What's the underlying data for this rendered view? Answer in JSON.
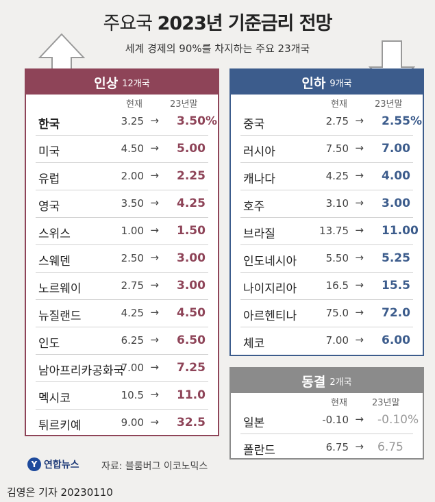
{
  "title_light": "주요국",
  "title_bold": "2023년 기준금리 전망",
  "subtitle": "세계 경제의 90%를 차지하는 주요 23개국",
  "cols": {
    "current": "현재",
    "forecast": "23년말"
  },
  "colors": {
    "hike": "#8e4458",
    "cut": "#3c5c8c",
    "hold": "#8b8b8b"
  },
  "hike": {
    "label": "인상",
    "count": "12개국",
    "rows": [
      {
        "name": "한국",
        "cur": "3.25",
        "nxt": "3.50%"
      },
      {
        "name": "미국",
        "cur": "4.50",
        "nxt": "5.00"
      },
      {
        "name": "유럽",
        "cur": "2.00",
        "nxt": "2.25"
      },
      {
        "name": "영국",
        "cur": "3.50",
        "nxt": "4.25"
      },
      {
        "name": "스위스",
        "cur": "1.00",
        "nxt": "1.50"
      },
      {
        "name": "스웨덴",
        "cur": "2.50",
        "nxt": "3.00"
      },
      {
        "name": "노르웨이",
        "cur": "2.75",
        "nxt": "3.00"
      },
      {
        "name": "뉴질랜드",
        "cur": "4.25",
        "nxt": "4.50"
      },
      {
        "name": "인도",
        "cur": "6.25",
        "nxt": "6.50"
      },
      {
        "name": "남아프리카공화국",
        "cur": "7.00",
        "nxt": "7.25"
      },
      {
        "name": "멕시코",
        "cur": "10.5",
        "nxt": "11.0"
      },
      {
        "name": "튀르키예",
        "cur": "9.00",
        "nxt": "32.5"
      }
    ]
  },
  "cut": {
    "label": "인하",
    "count": "9개국",
    "rows": [
      {
        "name": "중국",
        "cur": "2.75",
        "nxt": "2.55%"
      },
      {
        "name": "러시아",
        "cur": "7.50",
        "nxt": "7.00"
      },
      {
        "name": "캐나다",
        "cur": "4.25",
        "nxt": "4.00"
      },
      {
        "name": "호주",
        "cur": "3.10",
        "nxt": "3.00"
      },
      {
        "name": "브라질",
        "cur": "13.75",
        "nxt": "11.00"
      },
      {
        "name": "인도네시아",
        "cur": "5.50",
        "nxt": "5.25"
      },
      {
        "name": "나이지리아",
        "cur": "16.5",
        "nxt": "15.5"
      },
      {
        "name": "아르헨티나",
        "cur": "75.0",
        "nxt": "72.0"
      },
      {
        "name": "체코",
        "cur": "7.00",
        "nxt": "6.00"
      }
    ]
  },
  "hold": {
    "label": "동결",
    "count": "2개국",
    "rows": [
      {
        "name": "일본",
        "cur": "-0.10",
        "nxt": "-0.10%"
      },
      {
        "name": "폴란드",
        "cur": "6.75",
        "nxt": "6.75"
      }
    ]
  },
  "arrow_symbol": "→",
  "logo_text": "연합뉴스",
  "source": "자료: 블룸버그 이코노믹스",
  "credit": "김영은 기자  20230110"
}
